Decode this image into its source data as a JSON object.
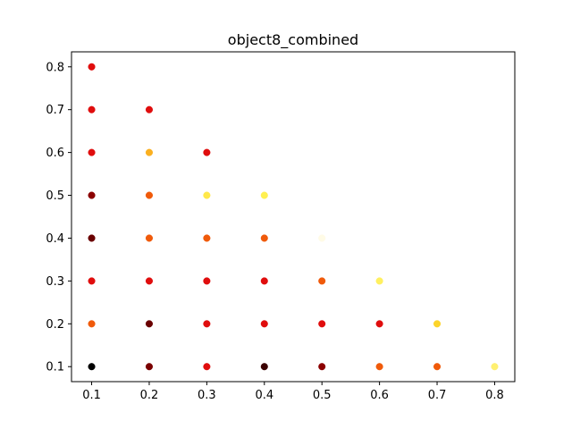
{
  "chart_data": {
    "type": "scatter",
    "title": "object8_combined",
    "xlabel": "",
    "ylabel": "",
    "xlim": [
      0.065,
      0.835
    ],
    "ylim": [
      0.065,
      0.835
    ],
    "x_ticks": [
      "0.1",
      "0.2",
      "0.3",
      "0.4",
      "0.5",
      "0.6",
      "0.7",
      "0.8"
    ],
    "y_ticks": [
      "0.1",
      "0.2",
      "0.3",
      "0.4",
      "0.5",
      "0.6",
      "0.7",
      "0.8"
    ],
    "grid": false,
    "points": [
      {
        "x": 0.1,
        "y": 0.8,
        "color": "#e00d0d"
      },
      {
        "x": 0.1,
        "y": 0.7,
        "color": "#e00d0d"
      },
      {
        "x": 0.1,
        "y": 0.6,
        "color": "#e00d0d"
      },
      {
        "x": 0.1,
        "y": 0.5,
        "color": "#8b0000"
      },
      {
        "x": 0.1,
        "y": 0.4,
        "color": "#6a0000"
      },
      {
        "x": 0.1,
        "y": 0.3,
        "color": "#e00d0d"
      },
      {
        "x": 0.1,
        "y": 0.2,
        "color": "#f05a0a"
      },
      {
        "x": 0.1,
        "y": 0.1,
        "color": "#000000"
      },
      {
        "x": 0.2,
        "y": 0.7,
        "color": "#e00d0d"
      },
      {
        "x": 0.2,
        "y": 0.6,
        "color": "#fbb020"
      },
      {
        "x": 0.2,
        "y": 0.5,
        "color": "#f05a0a"
      },
      {
        "x": 0.2,
        "y": 0.4,
        "color": "#f05a0a"
      },
      {
        "x": 0.2,
        "y": 0.3,
        "color": "#e00d0d"
      },
      {
        "x": 0.2,
        "y": 0.2,
        "color": "#6a0000"
      },
      {
        "x": 0.2,
        "y": 0.1,
        "color": "#7a0000"
      },
      {
        "x": 0.3,
        "y": 0.6,
        "color": "#e00d0d"
      },
      {
        "x": 0.3,
        "y": 0.5,
        "color": "#ffe84a"
      },
      {
        "x": 0.3,
        "y": 0.4,
        "color": "#f05a0a"
      },
      {
        "x": 0.3,
        "y": 0.3,
        "color": "#e00d0d"
      },
      {
        "x": 0.3,
        "y": 0.2,
        "color": "#e00d0d"
      },
      {
        "x": 0.3,
        "y": 0.1,
        "color": "#e00d0d"
      },
      {
        "x": 0.4,
        "y": 0.5,
        "color": "#fff050"
      },
      {
        "x": 0.4,
        "y": 0.4,
        "color": "#f05a0a"
      },
      {
        "x": 0.4,
        "y": 0.3,
        "color": "#e00d0d"
      },
      {
        "x": 0.4,
        "y": 0.2,
        "color": "#e00d0d"
      },
      {
        "x": 0.4,
        "y": 0.1,
        "color": "#3a0000"
      },
      {
        "x": 0.5,
        "y": 0.4,
        "color": "#fffbe6"
      },
      {
        "x": 0.5,
        "y": 0.3,
        "color": "#f05a0a"
      },
      {
        "x": 0.5,
        "y": 0.2,
        "color": "#e00d0d"
      },
      {
        "x": 0.5,
        "y": 0.1,
        "color": "#8b0000"
      },
      {
        "x": 0.6,
        "y": 0.3,
        "color": "#fff060"
      },
      {
        "x": 0.6,
        "y": 0.2,
        "color": "#e00d0d"
      },
      {
        "x": 0.6,
        "y": 0.1,
        "color": "#f05a0a"
      },
      {
        "x": 0.7,
        "y": 0.2,
        "color": "#fcd42a"
      },
      {
        "x": 0.7,
        "y": 0.1,
        "color": "#f05a0a"
      },
      {
        "x": 0.8,
        "y": 0.1,
        "color": "#fff070"
      }
    ]
  }
}
